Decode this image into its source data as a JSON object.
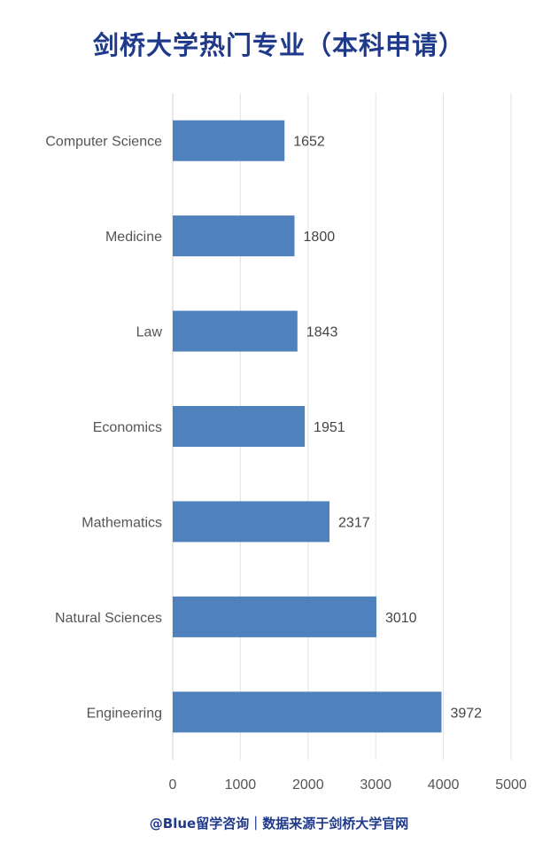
{
  "page": {
    "title": "剑桥大学热门专业（本科申请）",
    "footer": "@Blue留学咨询｜数据来源于剑桥大学官网",
    "title_color": "#1f3a8a",
    "footer_color": "#1f3a8a"
  },
  "chart_data": {
    "type": "bar",
    "orientation": "horizontal",
    "title": "剑桥大学热门专业（本科申请）",
    "xlabel": "",
    "ylabel": "",
    "categories": [
      "Computer Science",
      "Medicine",
      "Law",
      "Economics",
      "Mathematics",
      "Natural Sciences",
      "Engineering"
    ],
    "values": [
      1652,
      1800,
      1843,
      1951,
      2317,
      3010,
      3972
    ],
    "xlim": [
      0,
      5000
    ],
    "xticks": [
      0,
      1000,
      2000,
      3000,
      4000,
      5000
    ],
    "bar_color": "#4f81bd",
    "grid": true,
    "legend": "none",
    "data_labels": true
  }
}
